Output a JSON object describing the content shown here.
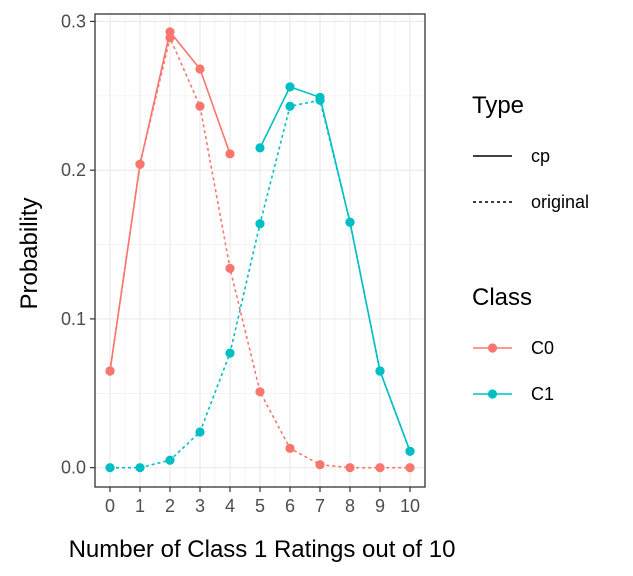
{
  "chart_data": {
    "type": "line",
    "xlabel": "Number of Class 1 Ratings out of 10",
    "ylabel": "Probability",
    "xlim": [
      -0.5,
      10.5
    ],
    "ylim": [
      -0.013,
      0.305
    ],
    "x_ticks": [
      0,
      1,
      2,
      3,
      4,
      5,
      6,
      7,
      8,
      9,
      10
    ],
    "y_ticks": [
      0.0,
      0.1,
      0.2,
      0.3
    ],
    "y_tick_labels": [
      "0.0",
      "0.1",
      "0.2",
      "0.3"
    ],
    "grid": true,
    "legend_placement": "right",
    "legends": [
      {
        "title": "Type",
        "entries": [
          {
            "label": "cp",
            "line": "solid"
          },
          {
            "label": "original",
            "line": "dashed"
          }
        ]
      },
      {
        "title": "Class",
        "entries": [
          {
            "label": "C0",
            "color": "#F8766D"
          },
          {
            "label": "C1",
            "color": "#00BFC4"
          }
        ]
      }
    ],
    "series": [
      {
        "class": "C0",
        "type": "cp",
        "color": "#F8766D",
        "line": "solid",
        "x": [
          0,
          1,
          2,
          3,
          4
        ],
        "y": [
          0.065,
          0.204,
          0.293,
          0.268,
          0.211
        ]
      },
      {
        "class": "C0",
        "type": "original",
        "color": "#F8766D",
        "line": "dashed",
        "x": [
          0,
          1,
          2,
          3,
          4,
          5,
          6,
          7,
          8,
          9,
          10
        ],
        "y": [
          0.065,
          0.204,
          0.289,
          0.243,
          0.134,
          0.051,
          0.013,
          0.002,
          0.0,
          0.0,
          0.0
        ]
      },
      {
        "class": "C1",
        "type": "cp",
        "color": "#00BFC4",
        "line": "solid",
        "x": [
          5,
          6,
          7,
          8,
          9,
          10
        ],
        "y": [
          0.215,
          0.256,
          0.249,
          0.165,
          0.065,
          0.011
        ]
      },
      {
        "class": "C1",
        "type": "original",
        "color": "#00BFC4",
        "line": "dashed",
        "x": [
          0,
          1,
          2,
          3,
          4,
          5,
          6,
          7,
          8,
          9,
          10
        ],
        "y": [
          0.0,
          0.0,
          0.005,
          0.024,
          0.077,
          0.164,
          0.243,
          0.247,
          0.165,
          0.065,
          0.011
        ]
      }
    ]
  }
}
